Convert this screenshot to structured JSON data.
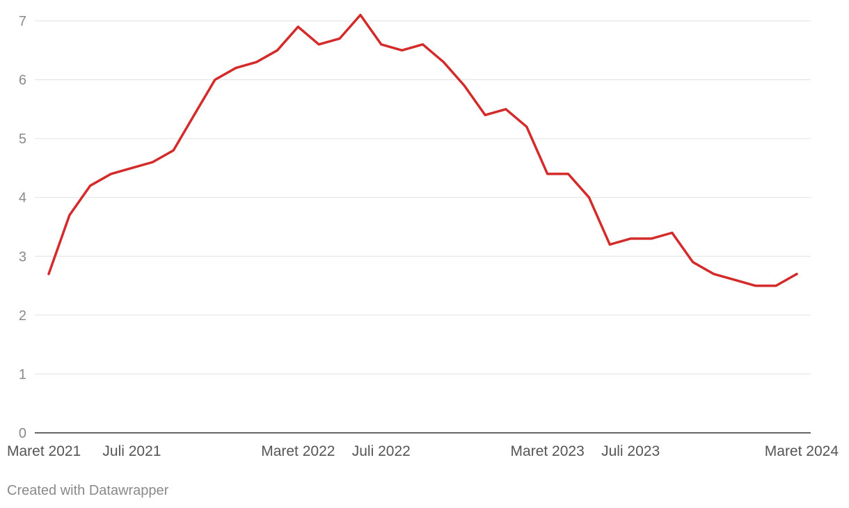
{
  "chart_data": {
    "type": "line",
    "title": "",
    "xlabel": "",
    "ylabel": "",
    "ylim": [
      0,
      7
    ],
    "y_ticks": [
      0,
      1,
      2,
      3,
      4,
      5,
      6,
      7
    ],
    "grid": true,
    "x_tick_labels": [
      {
        "label": "Maret 2021",
        "date": "2021-03"
      },
      {
        "label": "Juli 2021",
        "date": "2021-07"
      },
      {
        "label": "Maret 2022",
        "date": "2022-03"
      },
      {
        "label": "Juli 2022",
        "date": "2022-07"
      },
      {
        "label": "Maret 2023",
        "date": "2023-03"
      },
      {
        "label": "Juli 2023",
        "date": "2023-07"
      },
      {
        "label": "Maret 2024",
        "date": "2024-03"
      }
    ],
    "series": [
      {
        "color": "#d32a2a",
        "x": [
          "2021-03",
          "2021-04",
          "2021-05",
          "2021-06",
          "2021-07",
          "2021-08",
          "2021-09",
          "2021-10",
          "2021-11",
          "2021-12",
          "2022-01",
          "2022-02",
          "2022-03",
          "2022-04",
          "2022-05",
          "2022-06",
          "2022-07",
          "2022-08",
          "2022-09",
          "2022-10",
          "2022-11",
          "2022-12",
          "2023-01",
          "2023-02",
          "2023-03",
          "2023-04",
          "2023-05",
          "2023-06",
          "2023-07",
          "2023-08",
          "2023-09",
          "2023-10",
          "2023-11",
          "2023-12",
          "2024-01",
          "2024-02",
          "2024-03"
        ],
        "values": [
          2.7,
          3.7,
          4.2,
          4.4,
          4.5,
          4.6,
          4.8,
          5.4,
          6.0,
          6.2,
          6.3,
          6.5,
          6.9,
          6.6,
          6.7,
          7.1,
          6.6,
          6.5,
          6.6,
          6.3,
          5.9,
          5.4,
          5.5,
          5.2,
          4.4,
          4.4,
          4.0,
          3.2,
          3.3,
          3.3,
          3.4,
          2.9,
          2.7,
          2.6,
          2.5,
          2.5,
          2.7
        ]
      }
    ]
  },
  "footer": {
    "credit": "Created with Datawrapper"
  },
  "colors": {
    "line": "#d32a2a",
    "grid": "#e0e0e0",
    "axis": "#333333",
    "tick_text": "#8a8a8a",
    "x_label_text": "#555555"
  }
}
